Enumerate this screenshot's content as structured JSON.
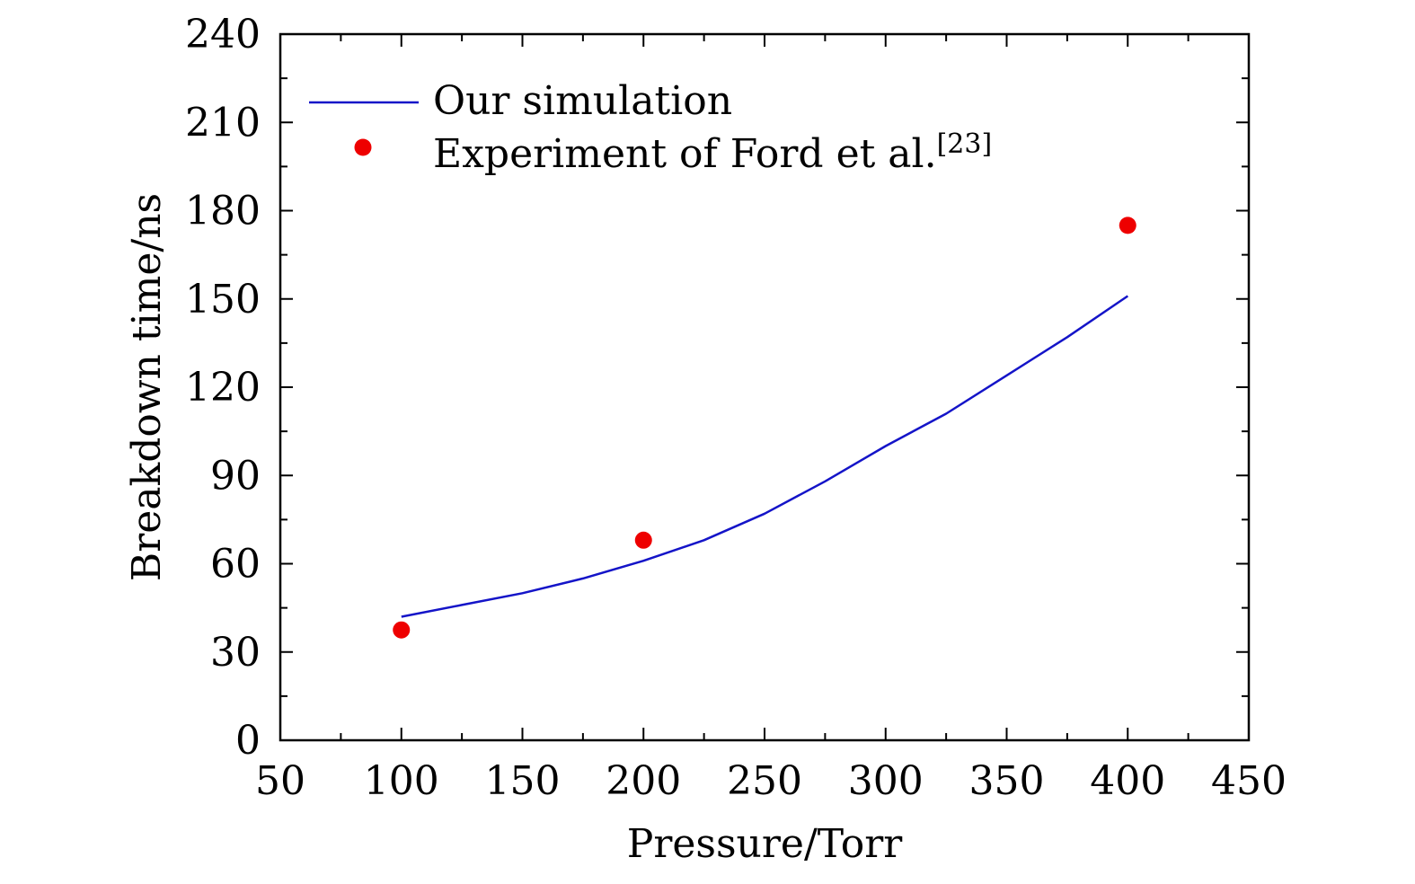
{
  "chart_data": {
    "type": "line",
    "title": "",
    "xlabel": "Pressure/Torr",
    "ylabel": "Breakdown time/ns",
    "xlim": [
      50,
      450
    ],
    "ylim": [
      0,
      240
    ],
    "xticks": [
      50,
      100,
      150,
      200,
      250,
      300,
      350,
      400,
      450
    ],
    "xtick_labels": [
      "50",
      "100",
      "150",
      "200",
      "250",
      "300",
      "350",
      "400",
      "450"
    ],
    "yticks": [
      0,
      30,
      60,
      90,
      120,
      150,
      180,
      210,
      240
    ],
    "ytick_labels": [
      "0",
      "30",
      "60",
      "90",
      "120",
      "150",
      "180",
      "210",
      "240"
    ],
    "grid": false,
    "legend_position": "top-left",
    "series": [
      {
        "name": "Our simulation",
        "kind": "line",
        "color": "#1414c8",
        "x": [
          100,
          125,
          150,
          175,
          200,
          225,
          250,
          275,
          300,
          325,
          350,
          375,
          400
        ],
        "y": [
          42,
          46,
          50,
          55,
          61,
          68,
          77,
          88,
          100,
          111,
          124,
          137,
          151
        ]
      },
      {
        "name": "Experiment of Ford et al.",
        "name_superscript": "[23]",
        "kind": "scatter",
        "color": "#ee0000",
        "x": [
          100,
          200,
          400
        ],
        "y": [
          37.5,
          68,
          175
        ]
      }
    ]
  }
}
